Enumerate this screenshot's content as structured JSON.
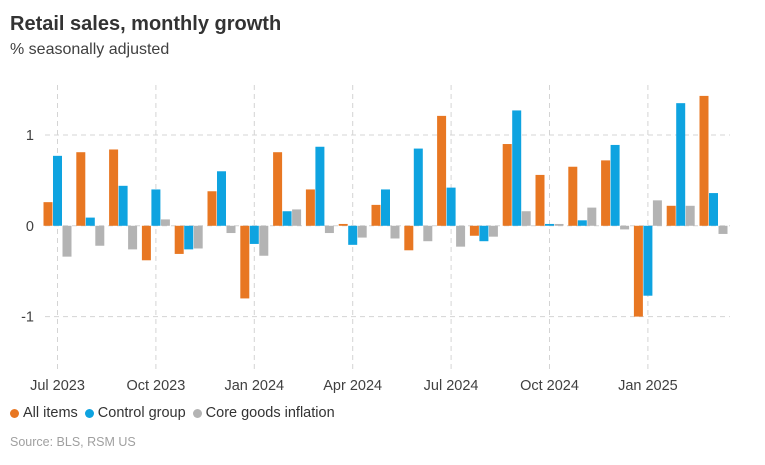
{
  "header": {
    "title": "Retail sales, monthly growth",
    "subtitle": "% seasonally adjusted"
  },
  "legend": {
    "items": [
      {
        "label": "All items",
        "color": "#e87722"
      },
      {
        "label": "Control group",
        "color": "#0ea3e0"
      },
      {
        "label": "Core goods inflation",
        "color": "#b3b3b3"
      }
    ]
  },
  "source": "Source: BLS, RSM US",
  "chart_data": {
    "type": "bar",
    "months": [
      "2023-07",
      "2023-08",
      "2023-09",
      "2023-10",
      "2023-11",
      "2023-12",
      "2024-01",
      "2024-02",
      "2024-03",
      "2024-04",
      "2024-05",
      "2024-06",
      "2024-07",
      "2024-08",
      "2024-09",
      "2024-10",
      "2024-11",
      "2024-12",
      "2025-01",
      "2025-02",
      "2025-03"
    ],
    "x_tick_labels": [
      {
        "label": "Jul 2023",
        "index": 0
      },
      {
        "label": "Oct 2023",
        "index": 3
      },
      {
        "label": "Jan 2024",
        "index": 6
      },
      {
        "label": "Apr 2024",
        "index": 9
      },
      {
        "label": "Jul 2024",
        "index": 12
      },
      {
        "label": "Oct 2024",
        "index": 15
      },
      {
        "label": "Jan 2025",
        "index": 18
      }
    ],
    "y_ticks": [
      1,
      0,
      -1
    ],
    "y_tick_labels": [
      "1",
      "0",
      "-1"
    ],
    "ylim": [
      -1.5,
      1.55
    ],
    "grid": true,
    "legend_position": "bottom-left",
    "series": [
      {
        "name": "All items",
        "color": "#e87722",
        "values": [
          0.26,
          0.81,
          0.84,
          -0.38,
          -0.31,
          0.38,
          -0.8,
          0.81,
          0.4,
          0.02,
          0.23,
          -0.27,
          1.21,
          -0.11,
          0.9,
          0.56,
          0.65,
          0.72,
          -1.0,
          0.22,
          1.43
        ]
      },
      {
        "name": "Control group",
        "color": "#0ea3e0",
        "values": [
          0.77,
          0.09,
          0.44,
          0.4,
          -0.26,
          0.6,
          -0.2,
          0.16,
          0.87,
          -0.21,
          0.4,
          0.85,
          0.42,
          -0.17,
          1.27,
          0.02,
          0.06,
          0.89,
          -0.77,
          1.35,
          0.36
        ]
      },
      {
        "name": "Core goods inflation",
        "color": "#b3b3b3",
        "values": [
          -0.34,
          -0.22,
          -0.26,
          0.07,
          -0.25,
          -0.08,
          -0.33,
          0.18,
          -0.08,
          -0.13,
          -0.14,
          -0.17,
          -0.23,
          -0.12,
          0.16,
          0.02,
          0.2,
          -0.04,
          0.28,
          0.22,
          -0.09
        ]
      }
    ]
  }
}
